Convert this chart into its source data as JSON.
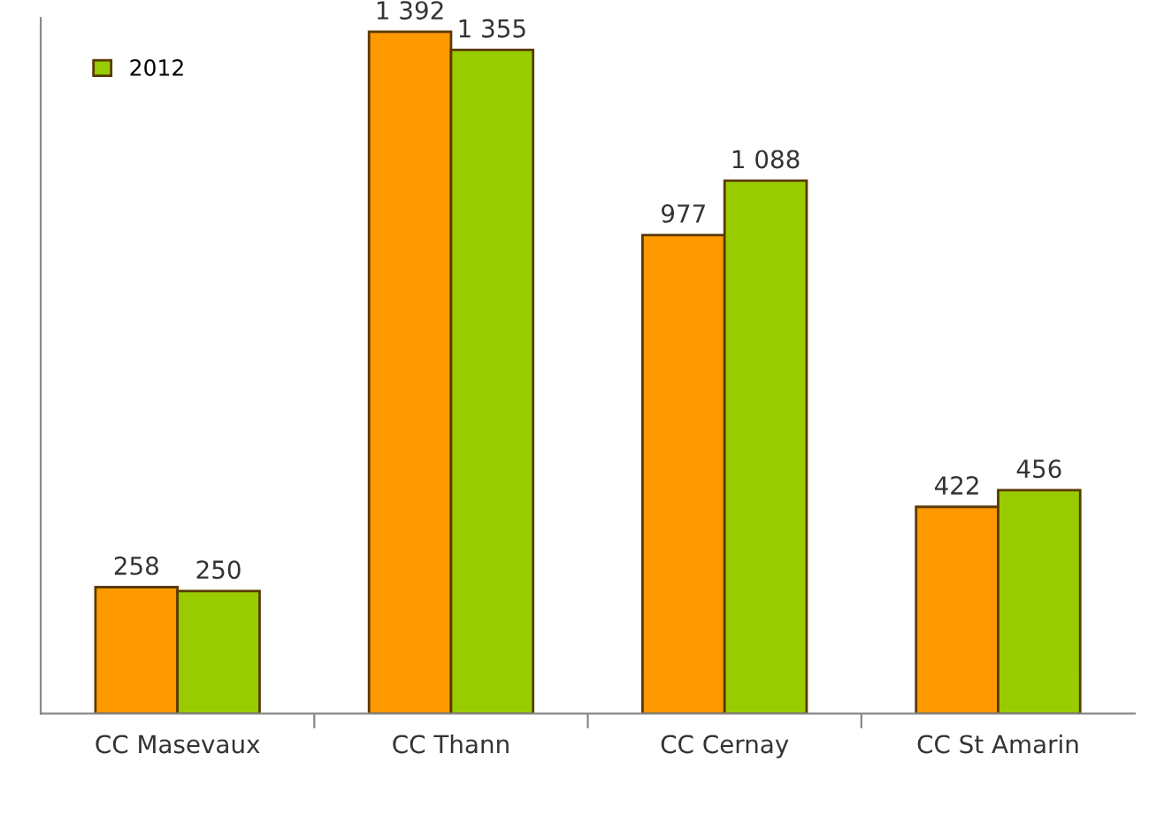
{
  "chart_data": {
    "type": "bar",
    "categories": [
      "CC Masevaux",
      "CC Thann",
      "CC Cernay",
      "CC St Amarin"
    ],
    "series": [
      {
        "color": "#ff9900",
        "values": [
          258,
          1392,
          977,
          422
        ],
        "value_labels": [
          "258",
          "1 392",
          "977",
          "422"
        ]
      },
      {
        "name": "2012",
        "color": "#99cc00",
        "values": [
          250,
          1355,
          1088,
          456
        ],
        "value_labels": [
          "250",
          "1 355",
          "1 088",
          "456"
        ]
      }
    ],
    "legend": "top left",
    "grid": false
  }
}
